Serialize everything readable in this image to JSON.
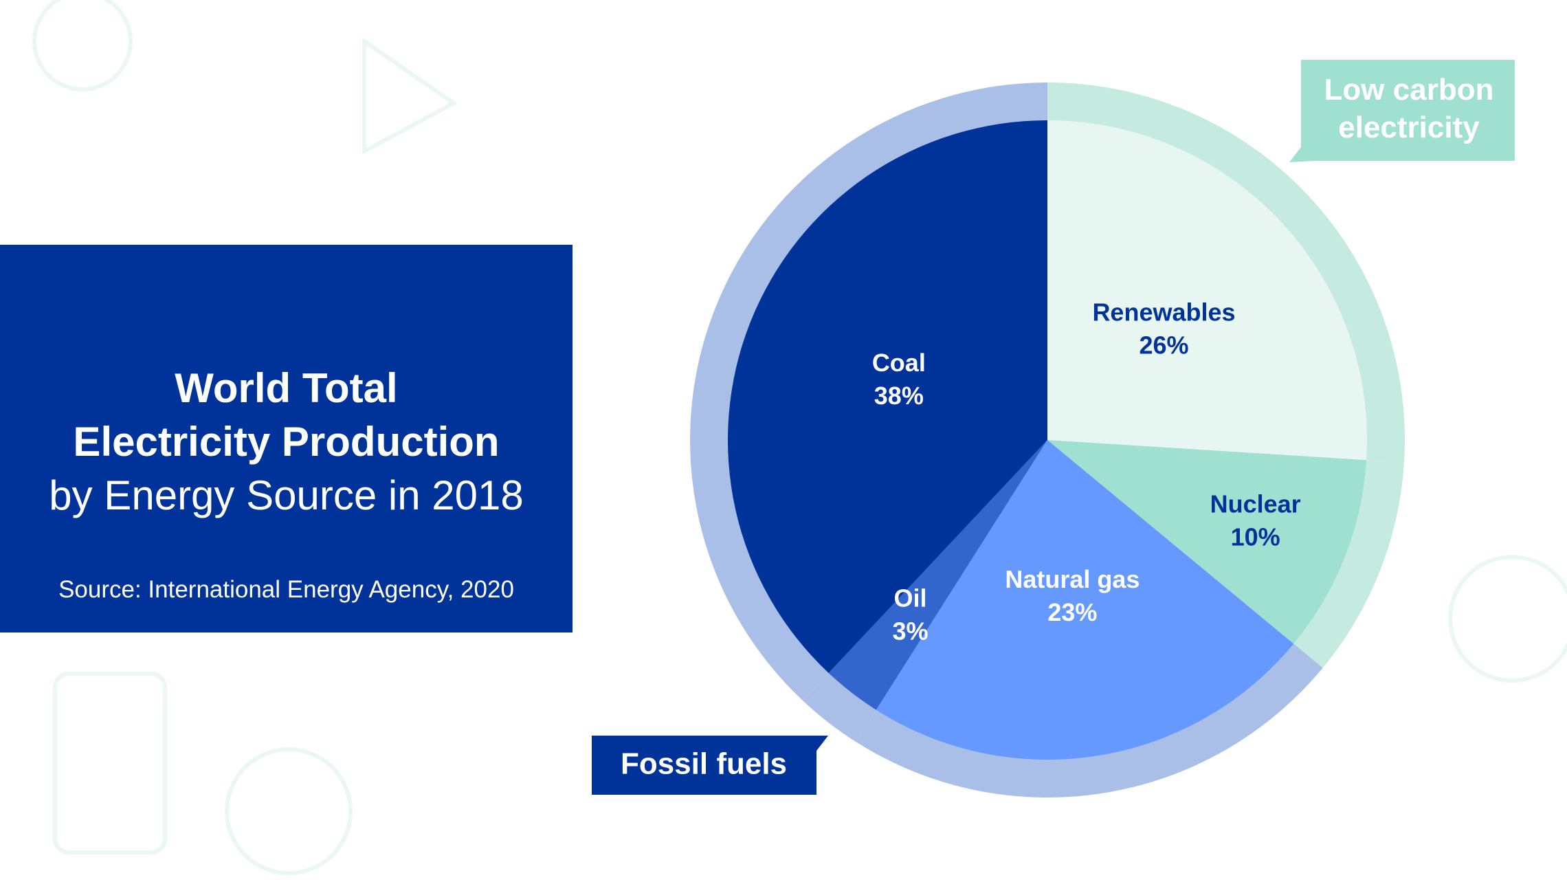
{
  "chart_data": {
    "type": "pie",
    "title": [
      "World Total",
      "Electricity Production"
    ],
    "subtitle": "by Energy Source in 2018",
    "source": "Source: International Energy Agency, 2020",
    "categories": [
      "Renewables",
      "Nuclear",
      "Natural gas",
      "Oil",
      "Coal"
    ],
    "values": [
      26,
      10,
      23,
      3,
      38
    ],
    "value_labels": [
      "26%",
      "10%",
      "23%",
      "3%",
      "38%"
    ],
    "colors": [
      "#e8f6f1",
      "#a0e0d0",
      "#6699ff",
      "#3366cc",
      "#003399"
    ],
    "group": [
      0,
      0,
      1,
      1,
      1
    ],
    "groups": [
      {
        "name": "Low carbon electricity",
        "color": "#c5ebe1"
      },
      {
        "name": "Fossil fuels",
        "color": "#aabfe8"
      }
    ]
  }
}
